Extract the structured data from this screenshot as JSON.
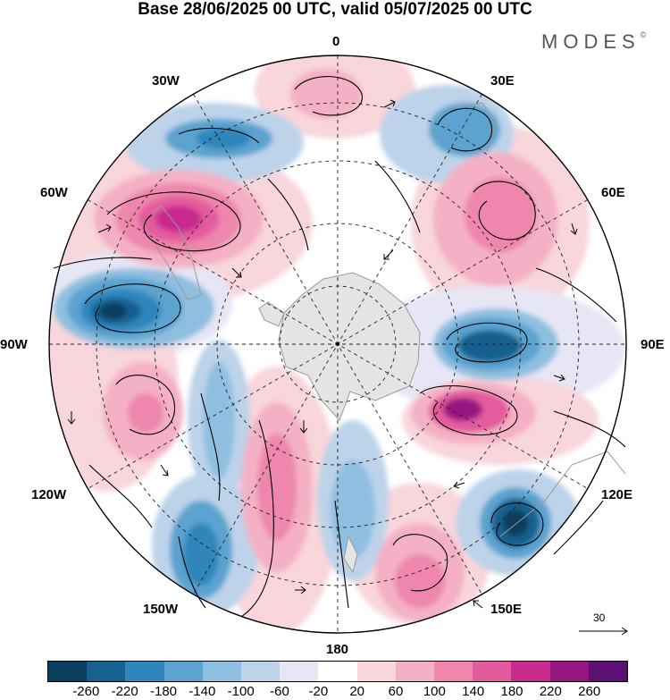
{
  "title": "Base 28/06/2025 00 UTC, valid 05/07/2025 00 UTC",
  "brand": "MODES",
  "brand_mark": "©",
  "longitude_labels": {
    "lon_0": "0",
    "lon_30e": "30E",
    "lon_60e": "60E",
    "lon_90e": "90E",
    "lon_120e": "120E",
    "lon_150e": "150E",
    "lon_180": "180",
    "lon_150w": "150W",
    "lon_120w": "120W",
    "lon_90w": "90W",
    "lon_60w": "60W",
    "lon_30w": "30W"
  },
  "reference_vector": {
    "label": "30"
  },
  "colorbar": {
    "tick_labels": [
      "-260",
      "-220",
      "-180",
      "-140",
      "-100",
      "-60",
      "-20",
      "20",
      "60",
      "100",
      "140",
      "180",
      "220",
      "260"
    ],
    "colors": [
      "#0b3d5c",
      "#15618f",
      "#2f86bb",
      "#5ba3d0",
      "#8fbfe0",
      "#bcd3ea",
      "#e6e6f5",
      "#ffffff",
      "#f8d6db",
      "#f4b0c4",
      "#ee86ad",
      "#e45b9d",
      "#c92a8e",
      "#961681",
      "#5c1074"
    ]
  },
  "map_colors": {
    "land": "#e4e4e4",
    "coast": "#9a9a9a",
    "graticule": "#222222",
    "streamline": "#000000"
  }
}
